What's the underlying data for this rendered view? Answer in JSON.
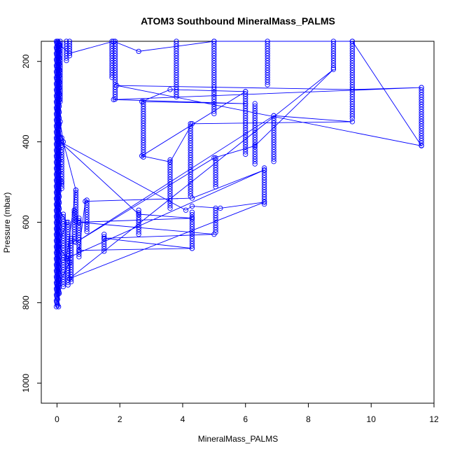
{
  "chart_data": {
    "type": "scatter",
    "title": "ATOM3 Southbound MineralMass_PALMS",
    "xlabel": "MineralMass_PALMS",
    "ylabel": "Pressure (mbar)",
    "xlim": [
      -0.5,
      12
    ],
    "ylim": [
      1050,
      150
    ],
    "y_reversed": true,
    "x_ticks": [
      0,
      2,
      4,
      6,
      8,
      10,
      12
    ],
    "y_ticks": [
      200,
      400,
      600,
      800,
      1000
    ],
    "grid": false,
    "legend": "none",
    "marker": "open-circle",
    "color": "#0000ff",
    "series": [
      {
        "connect": true,
        "points": [
          [
            0.02,
            150
          ],
          [
            0.05,
            230
          ],
          [
            0.02,
            320
          ],
          [
            0.1,
            390
          ],
          [
            0.03,
            460
          ],
          [
            0.15,
            500
          ],
          [
            0.02,
            560
          ],
          [
            0.3,
            600
          ],
          [
            0.05,
            660
          ],
          [
            0.4,
            700
          ],
          [
            0.02,
            760
          ],
          [
            0.05,
            810
          ],
          [
            0.1,
            160
          ],
          [
            0.4,
            180
          ],
          [
            1.8,
            150
          ],
          [
            2.6,
            175
          ],
          [
            5.0,
            150
          ],
          [
            9.4,
            150
          ],
          [
            11.6,
            410
          ],
          [
            1.9,
            260
          ],
          [
            9.4,
            270
          ],
          [
            11.6,
            265
          ],
          [
            1.8,
            295
          ],
          [
            6.0,
            305
          ],
          [
            2.7,
            300
          ],
          [
            3.6,
            270
          ],
          [
            6.0,
            275
          ],
          [
            2.7,
            435
          ],
          [
            3.6,
            450
          ],
          [
            4.3,
            355
          ],
          [
            9.4,
            350
          ],
          [
            6.9,
            335
          ],
          [
            0.6,
            650
          ],
          [
            5.0,
            440
          ],
          [
            6.3,
            410
          ],
          [
            8.8,
            220
          ],
          [
            0.4,
            740
          ],
          [
            6.6,
            550
          ],
          [
            5.2,
            565
          ],
          [
            4.3,
            560
          ],
          [
            4.1,
            570
          ],
          [
            0.1,
            400
          ],
          [
            2.6,
            580
          ],
          [
            4.3,
            590
          ],
          [
            0.7,
            600
          ],
          [
            5.0,
            630
          ],
          [
            1.5,
            640
          ],
          [
            4.3,
            665
          ],
          [
            0.7,
            670
          ],
          [
            0.9,
            548
          ],
          [
            4.3,
            540
          ],
          [
            6.6,
            470
          ],
          [
            0.3,
            690
          ],
          [
            0.6,
            520
          ],
          [
            0.2,
            400
          ],
          [
            0.1,
            350
          ]
        ]
      }
    ],
    "columns": [
      {
        "x": 0.0,
        "y": [
          150,
          810
        ],
        "dense": true
      },
      {
        "x": 0.05,
        "y": [
          150,
          780
        ],
        "dense": true
      },
      {
        "x": 0.1,
        "y": [
          150,
          300
        ]
      },
      {
        "x": 0.15,
        "y": [
          390,
          520
        ]
      },
      {
        "x": 0.2,
        "y": [
          580,
          760
        ]
      },
      {
        "x": 0.3,
        "y": [
          150,
          200
        ]
      },
      {
        "x": 0.4,
        "y": [
          150,
          190
        ]
      },
      {
        "x": 0.35,
        "y": [
          600,
          760
        ]
      },
      {
        "x": 0.45,
        "y": [
          640,
          750
        ]
      },
      {
        "x": 0.55,
        "y": [
          570,
          650
        ]
      },
      {
        "x": 0.6,
        "y": [
          520,
          600
        ]
      },
      {
        "x": 0.7,
        "y": [
          590,
          690
        ]
      },
      {
        "x": 0.95,
        "y": [
          545,
          625
        ]
      },
      {
        "x": 1.5,
        "y": [
          630,
          675
        ]
      },
      {
        "x": 1.75,
        "y": [
          150,
          240
        ]
      },
      {
        "x": 1.85,
        "y": [
          150,
          295
        ]
      },
      {
        "x": 2.6,
        "y": [
          570,
          630
        ]
      },
      {
        "x": 2.75,
        "y": [
          300,
          440
        ]
      },
      {
        "x": 3.6,
        "y": [
          445,
          565
        ]
      },
      {
        "x": 3.8,
        "y": [
          150,
          290
        ]
      },
      {
        "x": 4.25,
        "y": [
          355,
          540
        ]
      },
      {
        "x": 4.3,
        "y": [
          575,
          665
        ]
      },
      {
        "x": 5.0,
        "y": [
          150,
          330
        ]
      },
      {
        "x": 5.05,
        "y": [
          440,
          515
        ]
      },
      {
        "x": 5.05,
        "y": [
          565,
          630
        ]
      },
      {
        "x": 6.0,
        "y": [
          275,
          435
        ]
      },
      {
        "x": 6.3,
        "y": [
          305,
          455
        ]
      },
      {
        "x": 6.6,
        "y": [
          465,
          555
        ]
      },
      {
        "x": 6.7,
        "y": [
          150,
          260
        ]
      },
      {
        "x": 6.9,
        "y": [
          335,
          450
        ]
      },
      {
        "x": 8.8,
        "y": [
          150,
          220
        ]
      },
      {
        "x": 9.4,
        "y": [
          150,
          345
        ]
      },
      {
        "x": 11.6,
        "y": [
          265,
          410
        ]
      }
    ]
  }
}
